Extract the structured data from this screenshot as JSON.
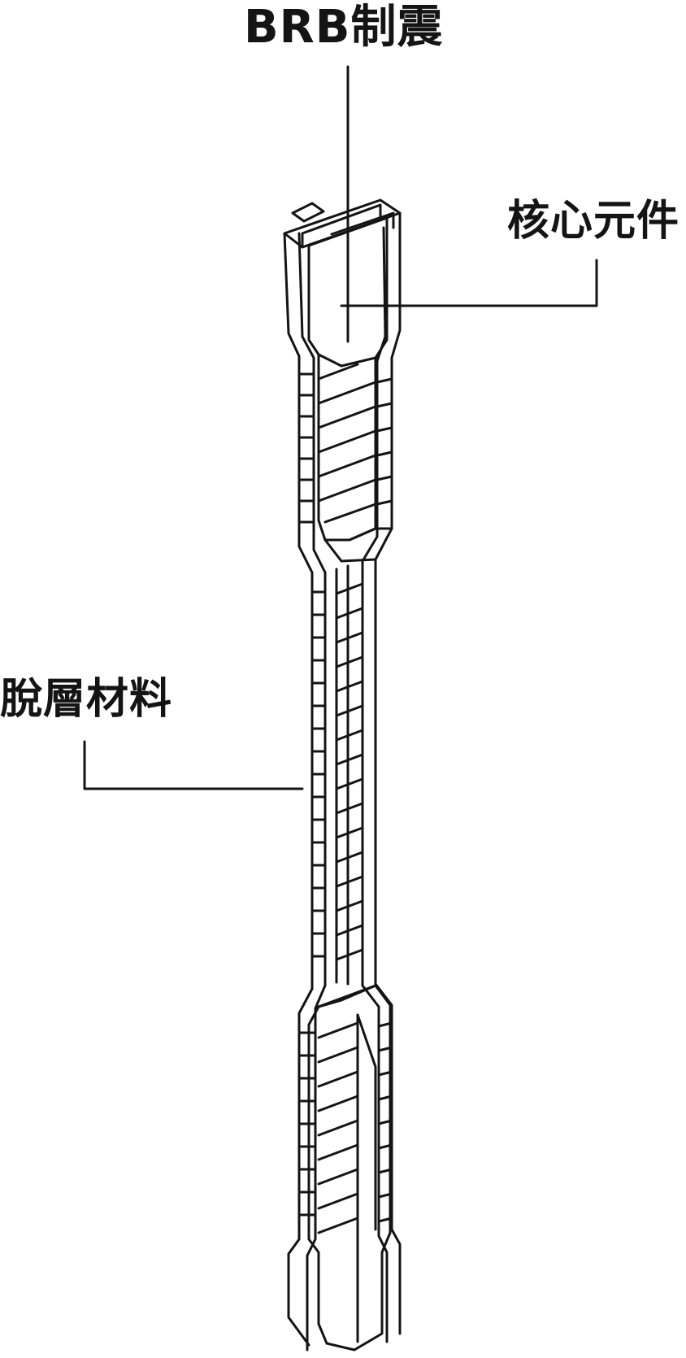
{
  "diagram": {
    "title": "BRB制震",
    "labels": {
      "core": "核心元件",
      "debonding": "脫層材料"
    },
    "colors": {
      "line": "#141414",
      "background": "#ffffff"
    }
  }
}
